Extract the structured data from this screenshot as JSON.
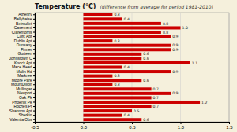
{
  "chart_data": {
    "type": "bar",
    "orientation": "horizontal",
    "title": "Temperature (°C)",
    "subtitle": "(difference from average for period 1981-2010)",
    "categories": [
      "Athenry",
      "Ballyhaise",
      "Belmullet",
      "Casement",
      "Claremorris",
      "Cork Apt",
      "Dublin Apt",
      "Dunsany",
      "Finner",
      "Gurteen",
      "Johnstown C",
      "Knock Apt",
      "Mace Head",
      "Malin Hd",
      "Markree",
      "Moore Park",
      "MountDillon",
      "Mullingar",
      "Newport",
      "Oak Pk",
      "Phoenix Pk",
      "Roches Pt",
      "Shannon Apt",
      "Sherkin",
      "Valentia Obs"
    ],
    "values": [
      0.3,
      0.4,
      0.8,
      1.0,
      0.8,
      0.9,
      0.3,
      0.9,
      0.9,
      0.6,
      0.6,
      1.1,
      0.4,
      0.9,
      0.3,
      0.6,
      0.3,
      0.7,
      0.9,
      0.7,
      1.2,
      0.7,
      0.5,
      0.4,
      0.6
    ],
    "value_labels": [
      "0.3",
      "0.4",
      "0.8",
      "1.0",
      "0.8",
      "0.9",
      "0.3",
      "0.9",
      "0.9",
      "0.6",
      "0.6",
      "1.1",
      "0.4",
      "0.9",
      "0.3",
      "0.6",
      "0.3",
      "0.7",
      "0.9",
      "0.7",
      "1.2",
      "0.7",
      "0.5",
      "0.4",
      "0.6"
    ],
    "data_labels": true,
    "color": "#cc0000",
    "xlim": [
      -0.5,
      1.5
    ],
    "xticks": [
      -0.5,
      {
        "value": 0,
        "label": "0.0"
      },
      0.5,
      {
        "value": 1,
        "label": "1.0"
      },
      1.5
    ],
    "grid": true
  }
}
